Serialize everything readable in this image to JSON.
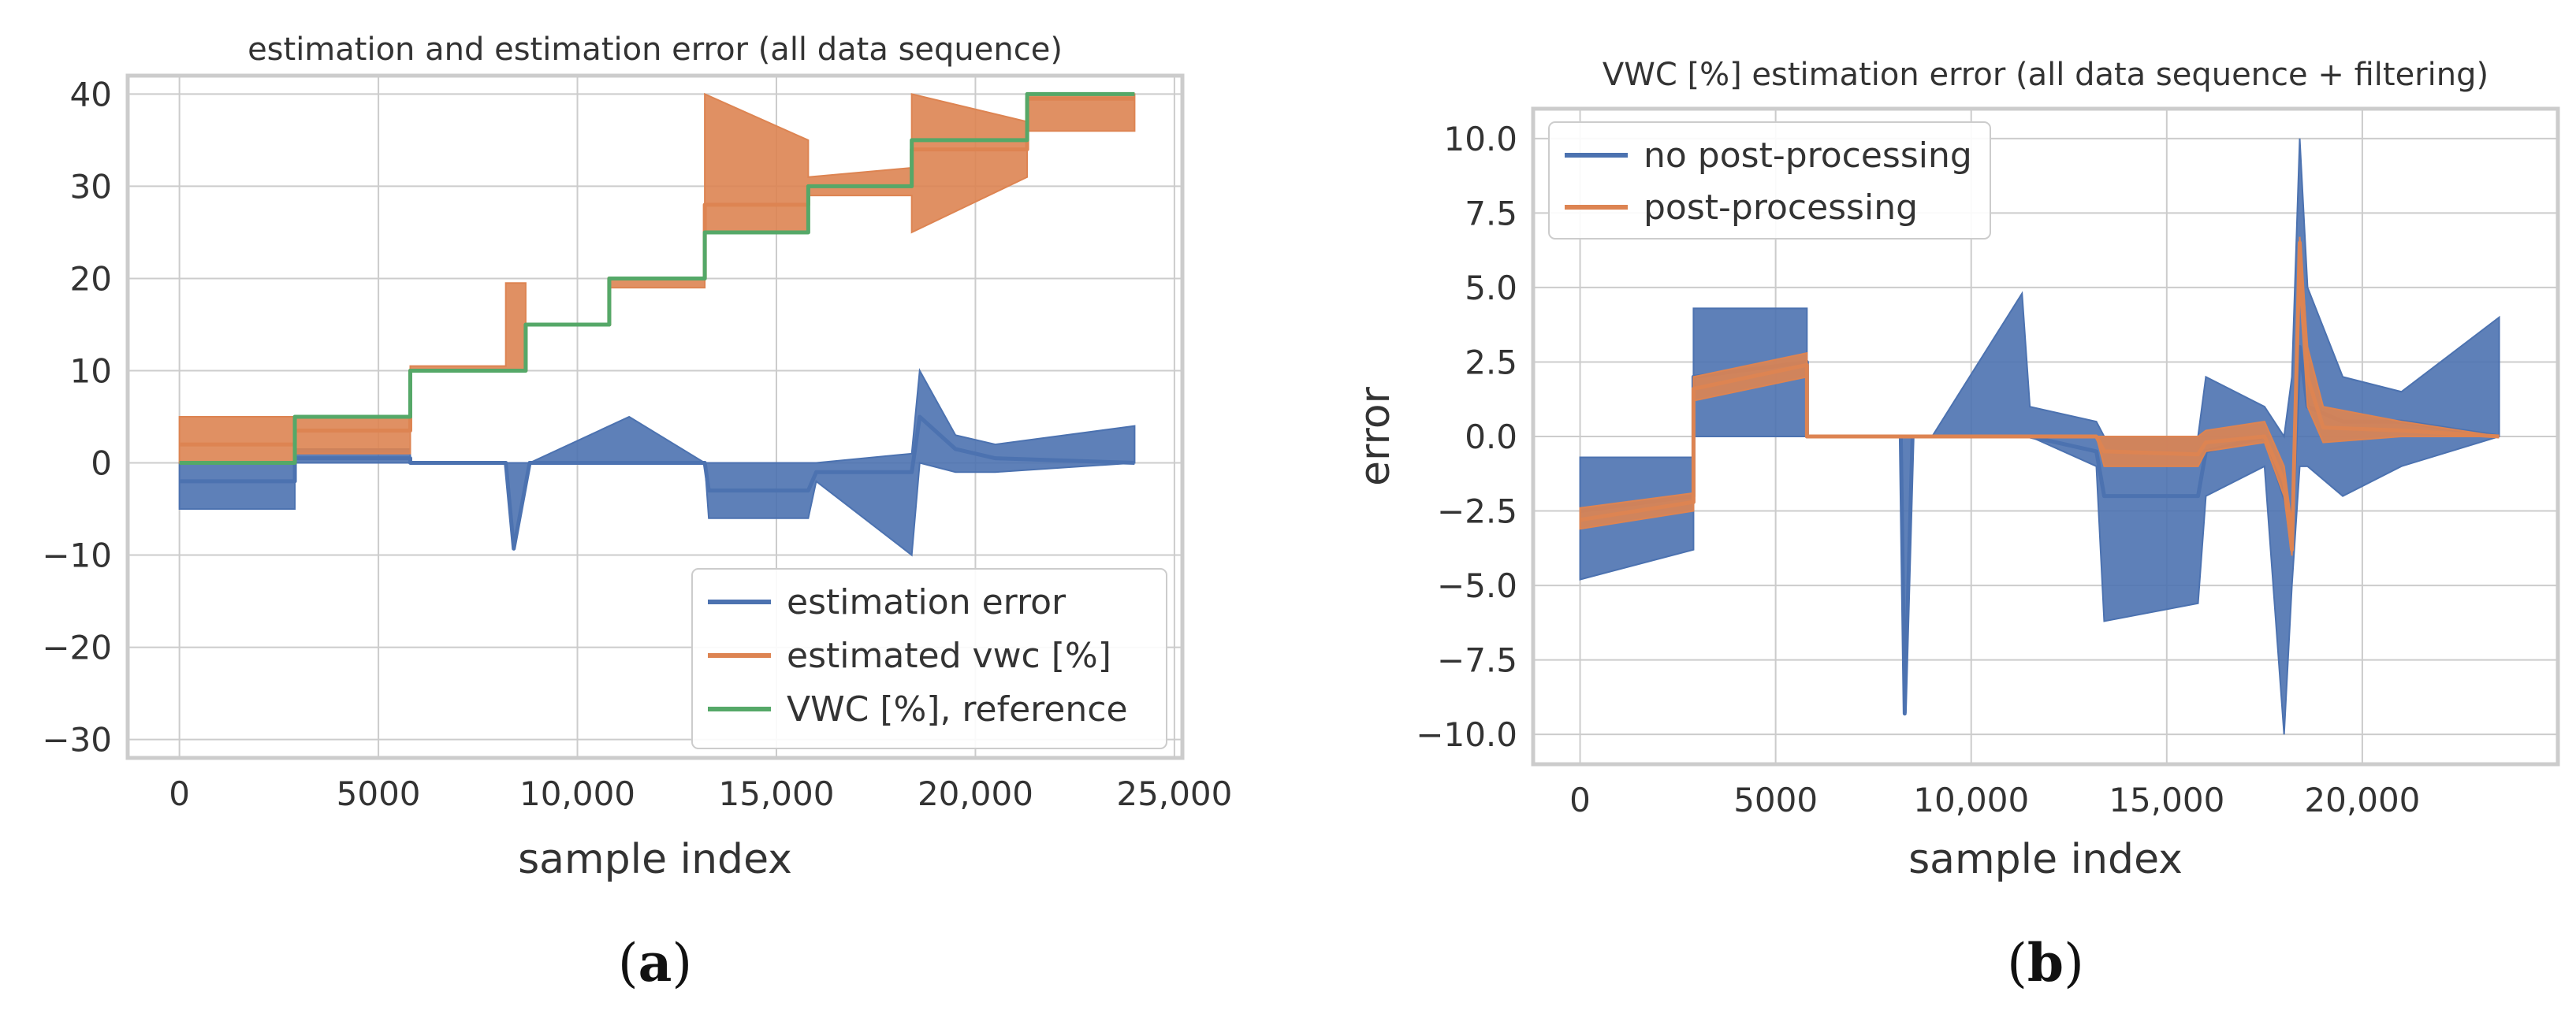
{
  "colors": {
    "blue": "#4c72b0",
    "orange": "#dd8452",
    "green": "#55a868",
    "grid": "#cccccc",
    "frame": "#cccccc"
  },
  "chart_data": [
    {
      "type": "line",
      "panel_label_open": "(",
      "panel_label_letter": "a",
      "panel_label_close": ")",
      "title": "estimation and estimation error (all data sequence)",
      "xlabel": "sample index",
      "ylabel": "",
      "xlim": [
        -1300,
        25200
      ],
      "ylim": [
        -32,
        42
      ],
      "grid": true,
      "legend_position": "lower-right",
      "xticks": [
        0,
        5000,
        10000,
        15000,
        20000,
        25000
      ],
      "xtick_labels": [
        "0",
        "5000",
        "10,000",
        "15,000",
        "20,000",
        "25,000"
      ],
      "yticks": [
        -30,
        -20,
        -10,
        0,
        10,
        20,
        30,
        40
      ],
      "ytick_labels": [
        "−30",
        "−20",
        "−10",
        "0",
        "10",
        "20",
        "30",
        "40"
      ],
      "series": [
        {
          "name": "estimation error",
          "color": "blue",
          "x": [
            0,
            2900,
            2900,
            5800,
            5800,
            8200,
            8400,
            8800,
            11300,
            13200,
            13300,
            15800,
            16000,
            18400,
            18600,
            19500,
            20500,
            24000
          ],
          "y": [
            -2,
            -2,
            0.5,
            0.5,
            0,
            0,
            -9.3,
            0,
            0,
            0,
            -3,
            -3,
            -1,
            -1,
            5,
            1.5,
            0.5,
            0
          ],
          "band_low": [
            -5,
            -5,
            0,
            0,
            0,
            0,
            -9.3,
            0,
            0,
            0,
            -6,
            -6,
            -2,
            -10,
            0,
            -1,
            -1,
            0
          ],
          "band_high": [
            0,
            0,
            1.5,
            1.5,
            0,
            0,
            0,
            0,
            5,
            0,
            0,
            0,
            0,
            1,
            10,
            3,
            2,
            4
          ]
        },
        {
          "name": "estimated vwc [%]",
          "color": "orange",
          "x": [
            0,
            2900,
            2900,
            5800,
            5800,
            8200,
            8200,
            8700,
            8700,
            10800,
            10800,
            13200,
            13200,
            15800,
            15800,
            18400,
            18400,
            21300,
            21300,
            24000
          ],
          "y": [
            2,
            2,
            3.5,
            3.5,
            10,
            10,
            10,
            10,
            15,
            15,
            20,
            20,
            28,
            28,
            30,
            30,
            34,
            34,
            39.5,
            39.5
          ],
          "band_low": [
            0,
            0,
            1,
            1,
            10,
            10,
            10,
            10,
            15,
            15,
            19,
            19,
            25,
            25,
            29,
            29,
            25,
            31,
            36,
            36
          ],
          "band_high": [
            5,
            5,
            5,
            5,
            10.5,
            10.5,
            19.5,
            19.5,
            15,
            15,
            20,
            20,
            40,
            35,
            31,
            32,
            40,
            37,
            40,
            40
          ]
        },
        {
          "name": "VWC [%], reference",
          "color": "green",
          "x": [
            0,
            2900,
            2900,
            5800,
            5800,
            8700,
            8700,
            10800,
            10800,
            13200,
            13200,
            15800,
            15800,
            18400,
            18400,
            21300,
            21300,
            24000
          ],
          "y": [
            0,
            0,
            5,
            5,
            10,
            10,
            15,
            15,
            20,
            20,
            25,
            25,
            30,
            30,
            35,
            35,
            40,
            40
          ]
        }
      ]
    },
    {
      "type": "line",
      "panel_label_open": "(",
      "panel_label_letter": "b",
      "panel_label_close": ")",
      "title": "VWC [%] estimation error (all data sequence + filtering)",
      "xlabel": "sample index",
      "ylabel": "error",
      "xlim": [
        -1200,
        25000
      ],
      "ylim": [
        -11,
        11
      ],
      "grid": true,
      "legend_position": "upper-left",
      "xticks": [
        0,
        5000,
        10000,
        15000,
        20000
      ],
      "xtick_labels": [
        "0",
        "5000",
        "10,000",
        "15,000",
        "20,000"
      ],
      "yticks": [
        -10,
        -7.5,
        -5,
        -2.5,
        0,
        2.5,
        5,
        7.5,
        10
      ],
      "ytick_labels": [
        "−10.0",
        "−7.5",
        "−5.0",
        "−2.5",
        "0.0",
        "2.5",
        "5.0",
        "7.5",
        "10.0"
      ],
      "series": [
        {
          "name": "no post-processing",
          "color": "blue",
          "x": [
            0,
            2900,
            2900,
            5800,
            5800,
            8200,
            8300,
            8500,
            9000,
            11300,
            11500,
            13200,
            13400,
            15800,
            16000,
            17500,
            18000,
            18200,
            18400,
            18600,
            19500,
            21000,
            23500
          ],
          "y": [
            -2.5,
            -2,
            2,
            2.5,
            0,
            0,
            -9.3,
            0,
            0,
            0,
            0,
            -0.5,
            -2,
            -2,
            -0.5,
            0,
            -2,
            -3,
            3,
            1,
            0.5,
            0.5,
            0
          ],
          "band_low": [
            -4.8,
            -3.8,
            0,
            0,
            0,
            0,
            -9.3,
            0,
            0,
            0,
            0,
            -1,
            -6.2,
            -5.6,
            -2,
            -1,
            -10,
            -5,
            -1,
            -1,
            -2,
            -1,
            0
          ],
          "band_high": [
            -0.7,
            -0.7,
            4.3,
            4.3,
            0,
            0,
            0,
            0,
            0,
            4.8,
            1,
            0.5,
            0,
            0,
            2,
            1,
            0,
            2,
            10,
            5,
            2,
            1.5,
            4
          ]
        },
        {
          "name": "post-processing",
          "color": "orange",
          "x": [
            0,
            2900,
            2900,
            5800,
            5800,
            13200,
            13400,
            15800,
            16000,
            17500,
            18000,
            18200,
            18400,
            18600,
            19000,
            21000,
            23500
          ],
          "y": [
            -2.8,
            -2.2,
            1.6,
            2.4,
            0,
            0,
            -0.5,
            -0.6,
            -0.2,
            0,
            -1.5,
            -3.8,
            6.5,
            2,
            0.3,
            0.2,
            0
          ],
          "band_low": [
            -3.1,
            -2.5,
            1.2,
            2,
            0,
            0,
            -1,
            -1,
            -0.5,
            -0.2,
            -2,
            -4,
            5,
            1,
            -0.2,
            0,
            0
          ],
          "band_high": [
            -2.4,
            -1.9,
            2,
            2.8,
            0,
            0,
            0,
            0,
            0.2,
            0.5,
            -1,
            -3,
            6.7,
            3,
            1,
            0.5,
            0
          ]
        }
      ]
    }
  ]
}
